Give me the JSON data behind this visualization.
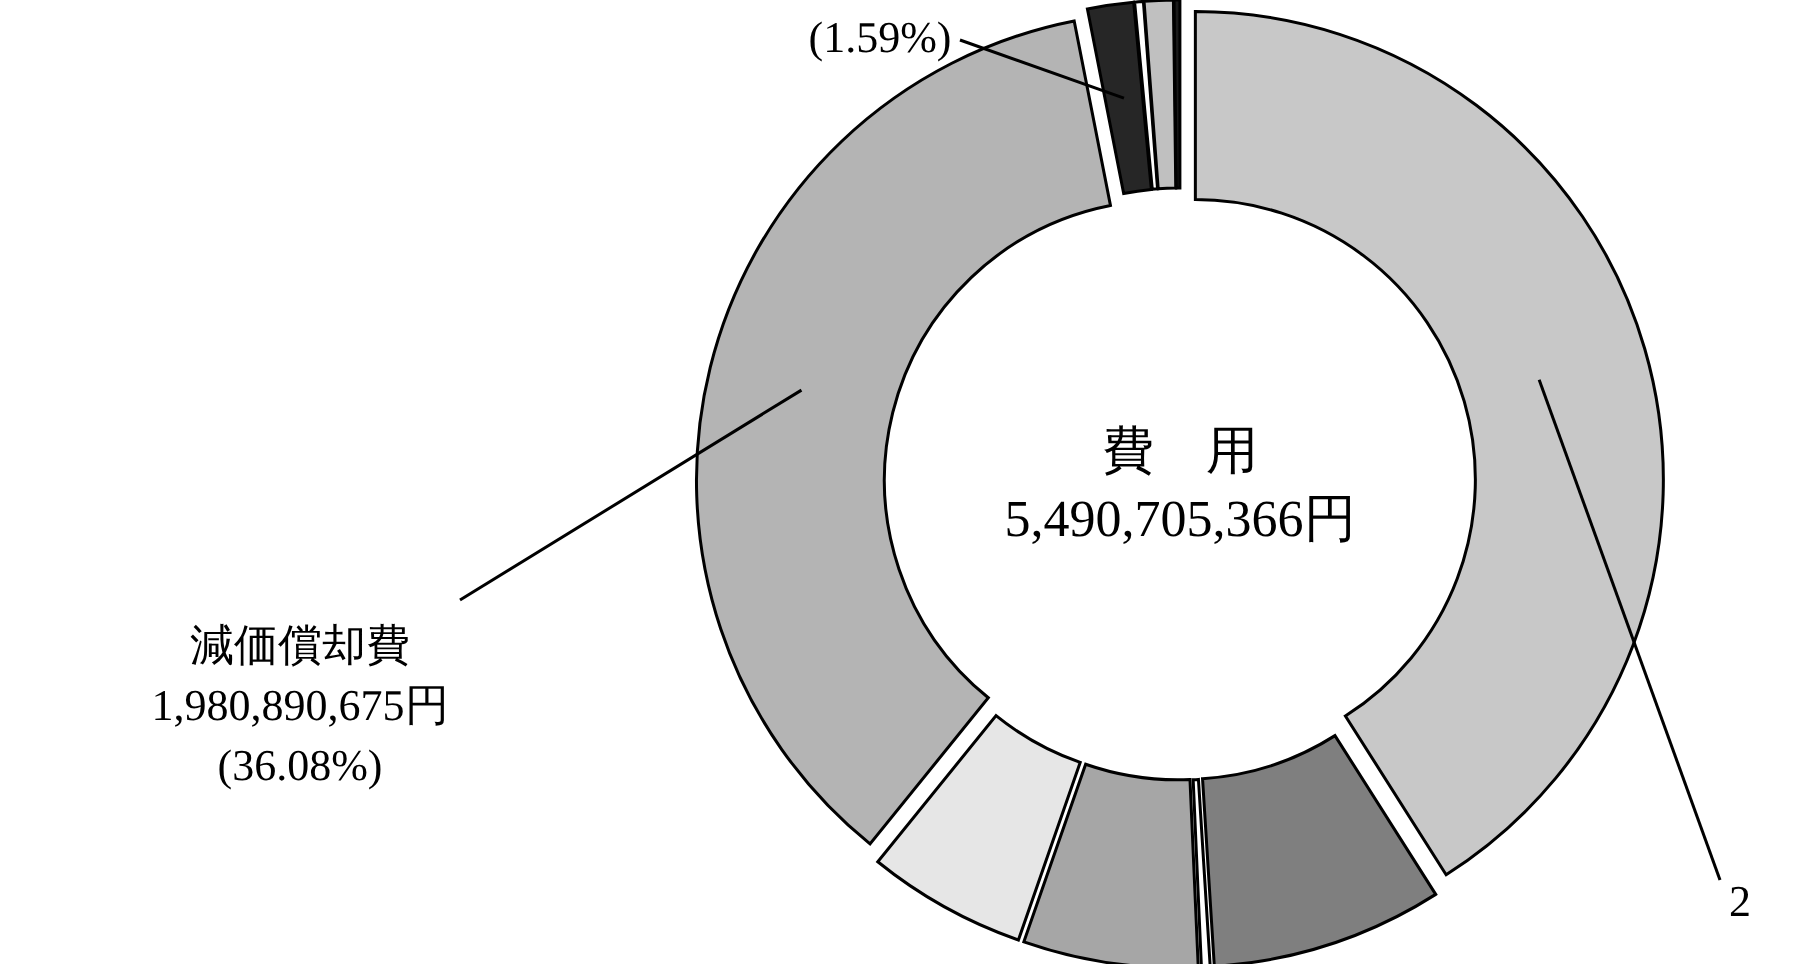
{
  "chart_data": {
    "type": "donut",
    "title": "費　用",
    "subtitle": "5,490,705,366円",
    "categories": [
      null,
      null,
      null,
      null,
      null,
      "減価償却費",
      null,
      null,
      null,
      null
    ],
    "values": [
      41,
      8,
      0.3,
      6.03,
      5.5,
      36.08,
      1.59,
      0.3,
      1,
      0.2
    ],
    "value_labels": [
      null,
      null,
      null,
      null,
      null,
      "1,980,890,675円 (36.08%)",
      "(1.59%)",
      null,
      null,
      null
    ],
    "colors": [
      "#c8c8c8",
      "#7f7f7f",
      "#ffffff",
      "#a6a6a6",
      "#e6e6e6",
      "#b4b4b4",
      "#262626",
      "#ffffff",
      "#c0c0c0",
      "#1a1a1a"
    ],
    "annotations": [
      "2"
    ]
  }
}
